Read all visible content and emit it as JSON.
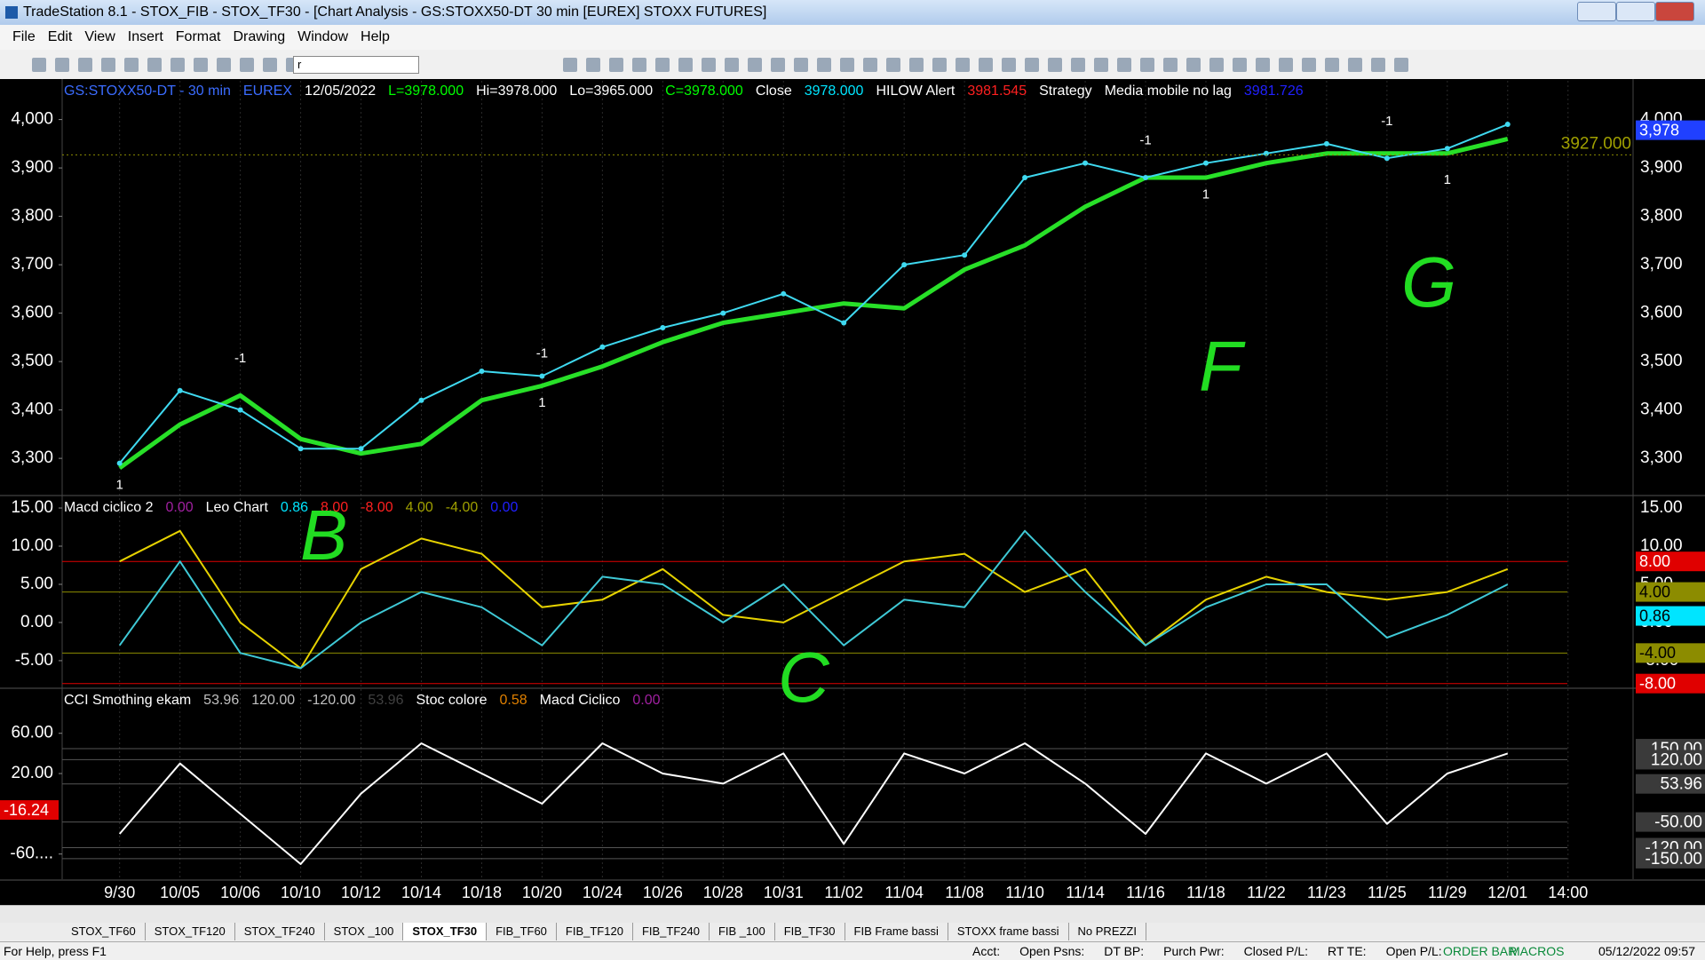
{
  "window": {
    "title": "TradeStation 8.1 - STOX_FIB - STOX_TF30 - [Chart Analysis - GS:STOXX50-DT  30 min  [EUREX] STOXX FUTURES]",
    "menu": [
      "File",
      "Edit",
      "View",
      "Insert",
      "Format",
      "Drawing",
      "Window",
      "Help"
    ],
    "symbol_box": "r"
  },
  "chart_data": [
    {
      "type": "line",
      "header": [
        {
          "text": "GS:STOXX50-DT - 30 min",
          "color": "#3b6cff"
        },
        {
          "text": "EUREX",
          "color": "#3b6cff"
        },
        {
          "text": "12/05/2022",
          "color": "#ffffff"
        },
        {
          "text": "L=3978.000",
          "color": "#00ff00"
        },
        {
          "text": "Hi=3978.000",
          "color": "#ffffff"
        },
        {
          "text": "Lo=3965.000",
          "color": "#ffffff"
        },
        {
          "text": "C=3978.000",
          "color": "#00ff00"
        },
        {
          "text": "Close",
          "color": "#ffffff"
        },
        {
          "text": "3978.000",
          "color": "#00e5ff"
        },
        {
          "text": "HILOW Alert",
          "color": "#ffffff"
        },
        {
          "text": "3981.545",
          "color": "#ff2020"
        },
        {
          "text": "Strategy",
          "color": "#ffffff"
        },
        {
          "text": "Media mobile no lag",
          "color": "#ffffff"
        },
        {
          "text": "3981.726",
          "color": "#2020ff"
        }
      ],
      "categories": [
        "9/30",
        "10/05",
        "10/06",
        "10/10",
        "10/12",
        "10/14",
        "10/18",
        "10/20",
        "10/24",
        "10/26",
        "10/28",
        "10/31",
        "11/02",
        "11/04",
        "11/08",
        "11/10",
        "11/14",
        "11/16",
        "11/18",
        "11/22",
        "11/23",
        "11/25",
        "11/29",
        "12/01",
        "14:00"
      ],
      "series": [
        {
          "color": "#28e028",
          "values": [
            3280,
            3370,
            3430,
            3340,
            3310,
            3330,
            3420,
            3450,
            3490,
            3540,
            3580,
            3600,
            3620,
            3610,
            3690,
            3740,
            3820,
            3880,
            3880,
            3910,
            3930,
            3930,
            3930,
            3960,
            null
          ]
        },
        {
          "color": "#3fd9f0",
          "values": [
            3290,
            3440,
            3400,
            3320,
            3320,
            3420,
            3480,
            3470,
            3530,
            3570,
            3600,
            3640,
            3580,
            3700,
            3720,
            3880,
            3910,
            3880,
            3910,
            3930,
            3950,
            3920,
            3940,
            3990,
            null
          ]
        }
      ],
      "ylim": [
        3225,
        4080
      ],
      "yticks": [
        {
          "value": 3300,
          "label": "3,300"
        },
        {
          "value": 3400,
          "label": "3,400"
        },
        {
          "value": 3500,
          "label": "3,500"
        },
        {
          "value": 3600,
          "label": "3,600"
        },
        {
          "value": 3700,
          "label": "3,700"
        },
        {
          "value": 3800,
          "label": "3,800"
        },
        {
          "value": 3900,
          "label": "3,900"
        },
        {
          "value": 4000,
          "label": "4,000"
        }
      ],
      "last_price": {
        "value": 3978,
        "label": "3,978"
      },
      "level": {
        "value": 3927,
        "label": "3927.000"
      },
      "signals": [
        {
          "at": "9/30",
          "value": 3270,
          "label": "1"
        },
        {
          "at": "10/06",
          "value": 3480,
          "label": "-1"
        },
        {
          "at": "10/20",
          "value": 3490,
          "label": "-1"
        },
        {
          "at": "10/20",
          "value": 3440,
          "label": "1"
        },
        {
          "at": "11/16",
          "value": 3930,
          "label": "-1"
        },
        {
          "at": "11/18",
          "value": 3870,
          "label": "1"
        },
        {
          "at": "11/25",
          "value": 3970,
          "label": "-1"
        },
        {
          "at": "11/29",
          "value": 3900,
          "label": "1"
        }
      ],
      "annotations": [
        "F",
        "G"
      ]
    },
    {
      "type": "line",
      "header": [
        {
          "text": "Macd ciclico 2",
          "color": "#ffffff"
        },
        {
          "text": "0.00",
          "color": "#a020a0"
        },
        {
          "text": "Leo Chart",
          "color": "#ffffff"
        },
        {
          "text": "0.86",
          "color": "#00e5ff"
        },
        {
          "text": "8.00",
          "color": "#ff2020"
        },
        {
          "text": "-8.00",
          "color": "#ff2020"
        },
        {
          "text": "4.00",
          "color": "#a0a000"
        },
        {
          "text": "-4.00",
          "color": "#a0a000"
        },
        {
          "text": "0.00",
          "color": "#2020ff"
        }
      ],
      "series": [
        {
          "color": "#e6d200",
          "values": [
            8,
            12,
            0,
            -6,
            7,
            11,
            9,
            2,
            3,
            7,
            1,
            0,
            4,
            8,
            9,
            4,
            7,
            -3,
            3,
            6,
            4,
            3,
            4,
            7,
            null
          ]
        },
        {
          "color": "#3fc9d6",
          "values": [
            -3,
            8,
            -4,
            -6,
            0,
            4,
            2,
            -3,
            6,
            5,
            0,
            5,
            -3,
            3,
            2,
            12,
            4,
            -3,
            2,
            5,
            5,
            -2,
            1,
            5,
            null
          ]
        }
      ],
      "ylim": [
        -8.5,
        16.4
      ],
      "yticks": [
        {
          "value": -5,
          "label": "-5.00"
        },
        {
          "value": 0,
          "label": "0.00"
        },
        {
          "value": 5,
          "label": "5.00"
        },
        {
          "value": 10,
          "label": "10.00"
        },
        {
          "value": 15,
          "label": "15.00"
        }
      ],
      "levels": [
        {
          "value": 8,
          "label": "8.00",
          "color": "#e00000"
        },
        {
          "value": 4,
          "label": "4.00",
          "color": "#8c8c00"
        },
        {
          "value": 0.86,
          "label": "0.86",
          "color": "#00e5ff"
        },
        {
          "value": -4,
          "label": "-4.00",
          "color": "#8c8c00"
        },
        {
          "value": -8,
          "label": "-8.00",
          "color": "#e00000"
        }
      ],
      "annotations": [
        "B",
        "C"
      ]
    },
    {
      "type": "line",
      "header": [
        {
          "text": "CCI Smothing ekam",
          "color": "#ffffff"
        },
        {
          "text": "53.96",
          "color": "#c0c0c0"
        },
        {
          "text": "120.00",
          "color": "#c0c0c0"
        },
        {
          "text": "-120.00",
          "color": "#c0c0c0"
        },
        {
          "text": "53.96",
          "color": "#404040"
        },
        {
          "text": "Stoc colore",
          "color": "#ffffff"
        },
        {
          "text": "0.58",
          "color": "#e08000"
        },
        {
          "text": "Macd Ciclico",
          "color": "#ffffff"
        },
        {
          "text": "0.00",
          "color": "#a020a0"
        }
      ],
      "series": [
        {
          "color": "#ffffff",
          "values": [
            -40,
            30,
            -20,
            -70,
            0,
            50,
            20,
            -10,
            50,
            20,
            10,
            40,
            -50,
            40,
            20,
            50,
            10,
            -40,
            40,
            10,
            40,
            -30,
            20,
            40,
            null
          ]
        }
      ],
      "ylim": [
        -85,
        103
      ],
      "yticks": [
        {
          "value": -60,
          "label": "-60...."
        },
        {
          "value": 20,
          "label": "20.00"
        },
        {
          "value": 60,
          "label": "60.00"
        }
      ],
      "y2lim": [
        -206,
        310
      ],
      "y2ticks": [
        {
          "value": 150,
          "label": "150.00"
        },
        {
          "value": 120,
          "label": "120.00"
        },
        {
          "value": 53.96,
          "label": "53.96"
        },
        {
          "value": -50,
          "label": "-50.00"
        },
        {
          "value": -120,
          "label": "-120.00"
        },
        {
          "value": -150,
          "label": "-150.00"
        }
      ],
      "flag": {
        "value": -16.24,
        "label": "-16.24"
      }
    }
  ],
  "tabs": [
    "STOX_TF60",
    "STOX_TF120",
    "STOX_TF240",
    "STOX _100",
    "STOX_TF30",
    "FIB_TF60",
    "FIB_TF120",
    "FIB_TF240",
    "FIB _100",
    "FIB_TF30",
    "FIB Frame bassi",
    "STOXX frame bassi",
    "No PREZZI"
  ],
  "status_bar": {
    "help": "For Help, press F1",
    "fields": [
      "Acct:",
      "Open Psns:",
      "DT BP:",
      "Purch Pwr:",
      "Closed P/L:",
      "RT TE:",
      "Open P/L:"
    ],
    "order_bar": "ORDER BAR",
    "macros": "MACROS",
    "datetime": "05/12/2022 09:57"
  }
}
